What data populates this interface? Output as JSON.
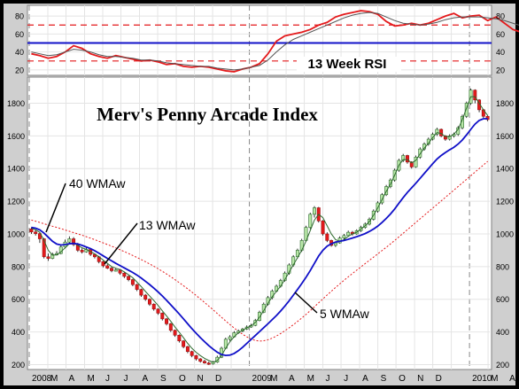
{
  "chart_data": [
    {
      "type": "line",
      "panel": "rsi",
      "label": "13 Week RSI",
      "y_ticks": [
        20,
        40,
        60,
        80
      ],
      "ylim": [
        14,
        92
      ],
      "reference_lines": [
        {
          "value": 70,
          "style": "dashed",
          "color": "#e41a1c"
        },
        {
          "value": 30,
          "style": "dashed",
          "color": "#e41a1c"
        },
        {
          "value": 50,
          "style": "solid",
          "color": "#1010c8"
        }
      ],
      "x": [
        0,
        2,
        4,
        6,
        8,
        10,
        12,
        14,
        16,
        18,
        20,
        22,
        24,
        26,
        28,
        30,
        32,
        34,
        36,
        38,
        40,
        42,
        44,
        46,
        48,
        50,
        52,
        54,
        56,
        58,
        60,
        62,
        64,
        66,
        68,
        70,
        72,
        74,
        76,
        78,
        80,
        82,
        84,
        86,
        88,
        90,
        92,
        94,
        96,
        98,
        100,
        102,
        104,
        106,
        108,
        110,
        112,
        114,
        116
      ],
      "series": [
        {
          "color": "#e41a1c",
          "values": [
            38,
            36,
            33,
            35,
            40,
            47,
            44,
            38,
            35,
            33,
            36,
            34,
            32,
            30,
            31,
            29,
            26,
            27,
            24,
            23,
            24,
            23,
            21,
            19,
            18,
            21,
            23,
            27,
            38,
            52,
            58,
            60,
            62,
            65,
            70,
            73,
            79,
            82,
            84,
            86,
            85,
            82,
            74,
            69,
            70,
            72,
            70,
            72,
            76,
            80,
            83,
            78,
            80,
            81,
            75,
            79,
            72,
            65,
            62
          ]
        },
        {
          "color": "#555555",
          "values": [
            40,
            38,
            36,
            37,
            40,
            43,
            42,
            40,
            37,
            35,
            35,
            34,
            33,
            31,
            31,
            30,
            28,
            27,
            26,
            25,
            24,
            24,
            22,
            21,
            20,
            21,
            23,
            25,
            31,
            40,
            48,
            54,
            58,
            62,
            66,
            70,
            74,
            78,
            81,
            83,
            84,
            83,
            79,
            75,
            72,
            71,
            70,
            71,
            73,
            76,
            78,
            79,
            79,
            79,
            78,
            77,
            75,
            72,
            69
          ]
        }
      ]
    },
    {
      "type": "candlestick",
      "panel": "price",
      "title": "Merv's Penny Arcade Index",
      "y_ticks": [
        200,
        400,
        600,
        800,
        1000,
        1200,
        1400,
        1600,
        1800
      ],
      "ylim": [
        170,
        1960
      ],
      "x_ticks": [
        "2008",
        "M",
        "A",
        "M",
        "J",
        "J",
        "A",
        "S",
        "O",
        "N",
        "D",
        "2009",
        "M",
        "A",
        "M",
        "J",
        "J",
        "A",
        "S",
        "O",
        "N",
        "D",
        "2010",
        "M",
        "A",
        "M"
      ],
      "candles": [
        [
          1030,
          1012,
          1040,
          1000
        ],
        [
          1012,
          1002,
          1025,
          990
        ],
        [
          1002,
          970,
          1010,
          945
        ],
        [
          970,
          860,
          975,
          850
        ],
        [
          860,
          850,
          880,
          835
        ],
        [
          850,
          875,
          885,
          845
        ],
        [
          875,
          880,
          895,
          868
        ],
        [
          880,
          920,
          935,
          875
        ],
        [
          920,
          950,
          965,
          912
        ],
        [
          950,
          970,
          985,
          942
        ],
        [
          970,
          935,
          980,
          925
        ],
        [
          935,
          900,
          945,
          890
        ],
        [
          900,
          890,
          912,
          880
        ],
        [
          890,
          905,
          915,
          885
        ],
        [
          905,
          875,
          910,
          865
        ],
        [
          875,
          860,
          880,
          850
        ],
        [
          860,
          830,
          865,
          820
        ],
        [
          830,
          805,
          835,
          795
        ],
        [
          805,
          790,
          815,
          785
        ],
        [
          790,
          775,
          800,
          765
        ],
        [
          775,
          780,
          790,
          770
        ],
        [
          780,
          760,
          785,
          750
        ],
        [
          760,
          740,
          765,
          730
        ],
        [
          740,
          720,
          745,
          710
        ],
        [
          720,
          690,
          725,
          680
        ],
        [
          690,
          660,
          695,
          650
        ],
        [
          660,
          625,
          665,
          615
        ],
        [
          625,
          600,
          632,
          590
        ],
        [
          600,
          570,
          605,
          560
        ],
        [
          570,
          540,
          575,
          530
        ],
        [
          540,
          515,
          545,
          505
        ],
        [
          515,
          480,
          520,
          470
        ],
        [
          480,
          450,
          485,
          440
        ],
        [
          450,
          410,
          455,
          400
        ],
        [
          410,
          380,
          415,
          370
        ],
        [
          380,
          345,
          385,
          335
        ],
        [
          345,
          310,
          350,
          300
        ],
        [
          310,
          280,
          315,
          270
        ],
        [
          280,
          255,
          285,
          245
        ],
        [
          255,
          235,
          260,
          225
        ],
        [
          235,
          220,
          240,
          212
        ],
        [
          220,
          210,
          230,
          205
        ],
        [
          210,
          205,
          218,
          198
        ],
        [
          205,
          215,
          222,
          200
        ],
        [
          215,
          245,
          255,
          210
        ],
        [
          245,
          300,
          310,
          240
        ],
        [
          300,
          355,
          365,
          295
        ],
        [
          355,
          370,
          380,
          345
        ],
        [
          370,
          395,
          405,
          365
        ],
        [
          395,
          405,
          415,
          388
        ],
        [
          405,
          418,
          425,
          398
        ],
        [
          418,
          430,
          440,
          412
        ],
        [
          430,
          440,
          450,
          425
        ],
        [
          440,
          470,
          480,
          435
        ],
        [
          470,
          520,
          530,
          465
        ],
        [
          520,
          570,
          580,
          515
        ],
        [
          570,
          610,
          620,
          562
        ],
        [
          610,
          650,
          660,
          600
        ],
        [
          650,
          680,
          690,
          642
        ],
        [
          680,
          715,
          725,
          672
        ],
        [
          715,
          760,
          770,
          708
        ],
        [
          760,
          810,
          820,
          750
        ],
        [
          810,
          860,
          870,
          800
        ],
        [
          860,
          900,
          910,
          850
        ],
        [
          900,
          960,
          970,
          890
        ],
        [
          960,
          1040,
          1050,
          952
        ],
        [
          1040,
          1120,
          1130,
          1030
        ],
        [
          1120,
          1160,
          1170,
          1100
        ],
        [
          1160,
          1080,
          1165,
          1070
        ],
        [
          1080,
          1000,
          1085,
          990
        ],
        [
          1000,
          960,
          1010,
          950
        ],
        [
          960,
          930,
          965,
          922
        ],
        [
          930,
          945,
          955,
          920
        ],
        [
          945,
          975,
          985,
          940
        ],
        [
          975,
          990,
          1000,
          965
        ],
        [
          990,
          1010,
          1020,
          982
        ],
        [
          1010,
          1000,
          1018,
          990
        ],
        [
          1000,
          1020,
          1028,
          995
        ],
        [
          1020,
          1040,
          1050,
          1012
        ],
        [
          1040,
          1060,
          1070,
          1032
        ],
        [
          1060,
          1090,
          1100,
          1052
        ],
        [
          1090,
          1140,
          1150,
          1082
        ],
        [
          1140,
          1190,
          1200,
          1130
        ],
        [
          1190,
          1240,
          1250,
          1180
        ],
        [
          1240,
          1290,
          1300,
          1232
        ],
        [
          1290,
          1330,
          1340,
          1280
        ],
        [
          1330,
          1390,
          1400,
          1320
        ],
        [
          1390,
          1450,
          1460,
          1380
        ],
        [
          1450,
          1480,
          1490,
          1440
        ],
        [
          1480,
          1440,
          1485,
          1430
        ],
        [
          1440,
          1410,
          1445,
          1400
        ],
        [
          1410,
          1470,
          1480,
          1405
        ],
        [
          1470,
          1520,
          1530,
          1460
        ],
        [
          1520,
          1550,
          1560,
          1510
        ],
        [
          1550,
          1580,
          1590,
          1540
        ],
        [
          1580,
          1610,
          1620,
          1572
        ],
        [
          1610,
          1640,
          1650,
          1600
        ],
        [
          1640,
          1600,
          1645,
          1592
        ],
        [
          1600,
          1580,
          1605,
          1570
        ],
        [
          1580,
          1600,
          1610,
          1572
        ],
        [
          1600,
          1610,
          1620,
          1590
        ],
        [
          1610,
          1650,
          1660,
          1600
        ],
        [
          1650,
          1720,
          1730,
          1640
        ],
        [
          1720,
          1800,
          1810,
          1710
        ],
        [
          1800,
          1880,
          1890,
          1790
        ],
        [
          1880,
          1820,
          1885,
          1800
        ],
        [
          1820,
          1760,
          1825,
          1745
        ],
        [
          1760,
          1720,
          1765,
          1710
        ],
        [
          1720,
          1700,
          1725,
          1690
        ]
      ],
      "ma_lines": [
        {
          "label": "5 WMAw",
          "color": "#2d6a2d",
          "values": [
            1035,
            1025,
            1010,
            960,
            900,
            870,
            872,
            890,
            915,
            940,
            945,
            930,
            915,
            905,
            892,
            878,
            860,
            840,
            820,
            800,
            790,
            782,
            768,
            750,
            732,
            705,
            678,
            648,
            620,
            592,
            562,
            530,
            498,
            465,
            430,
            398,
            365,
            330,
            300,
            275,
            255,
            238,
            225,
            215,
            225,
            255,
            300,
            340,
            370,
            395,
            410,
            425,
            438,
            458,
            490,
            530,
            575,
            615,
            648,
            680,
            720,
            765,
            810,
            855,
            900,
            955,
            1020,
            1085,
            1120,
            1100,
            1050,
            1000,
            965,
            955,
            965,
            985,
            1000,
            1010,
            1030,
            1050,
            1075,
            1115,
            1160,
            1210,
            1260,
            1305,
            1360,
            1420,
            1455,
            1455,
            1435,
            1450,
            1490,
            1525,
            1555,
            1590,
            1620,
            1615,
            1595,
            1595,
            1610,
            1640,
            1700,
            1770,
            1840,
            1840,
            1800,
            1760,
            1725
          ]
        },
        {
          "label": "13 WMAw",
          "color": "#1010c8",
          "values": [
            1040,
            1035,
            1025,
            1005,
            980,
            955,
            938,
            932,
            935,
            940,
            942,
            938,
            930,
            920,
            910,
            897,
            882,
            866,
            850,
            835,
            820,
            806,
            792,
            778,
            764,
            748,
            730,
            710,
            690,
            668,
            645,
            620,
            594,
            566,
            538,
            510,
            480,
            450,
            420,
            392,
            365,
            340,
            316,
            295,
            276,
            262,
            256,
            258,
            268,
            285,
            306,
            330,
            354,
            378,
            402,
            426,
            450,
            475,
            500,
            528,
            558,
            590,
            625,
            660,
            696,
            734,
            775,
            820,
            865,
            900,
            925,
            940,
            950,
            955,
            960,
            967,
            975,
            983,
            992,
            1002,
            1015,
            1030,
            1048,
            1070,
            1095,
            1122,
            1153,
            1188,
            1222,
            1254,
            1282,
            1310,
            1340,
            1370,
            1400,
            1430,
            1458,
            1480,
            1498,
            1515,
            1530,
            1550,
            1575,
            1606,
            1640,
            1672,
            1695,
            1705,
            1705
          ]
        },
        {
          "label": "40 WMAw",
          "color": "#e41a1c",
          "dashed": true,
          "values": [
            1085,
            1078,
            1070,
            1062,
            1055,
            1047,
            1040,
            1032,
            1024,
            1016,
            1008,
            1000,
            992,
            983,
            974,
            965,
            955,
            945,
            935,
            925,
            914,
            903,
            892,
            880,
            868,
            856,
            843,
            830,
            816,
            802,
            787,
            771,
            755,
            738,
            720,
            702,
            683,
            664,
            644,
            623,
            602,
            580,
            558,
            536,
            513,
            490,
            467,
            445,
            424,
            404,
            386,
            370,
            357,
            348,
            344,
            346,
            352,
            362,
            375,
            390,
            407,
            425,
            444,
            464,
            485,
            507,
            530,
            554,
            578,
            602,
            626,
            649,
            672,
            694,
            716,
            737,
            758,
            778,
            798,
            818,
            838,
            858,
            878,
            898,
            918,
            939,
            960,
            982,
            1004,
            1026,
            1048,
            1070,
            1092,
            1114,
            1136,
            1158,
            1180,
            1202,
            1224,
            1246,
            1268,
            1290,
            1312,
            1334,
            1356,
            1378,
            1400,
            1422,
            1444
          ]
        }
      ],
      "annotations": [
        "40 WMAw",
        "13 WMAw",
        "5 WMAw"
      ]
    }
  ]
}
